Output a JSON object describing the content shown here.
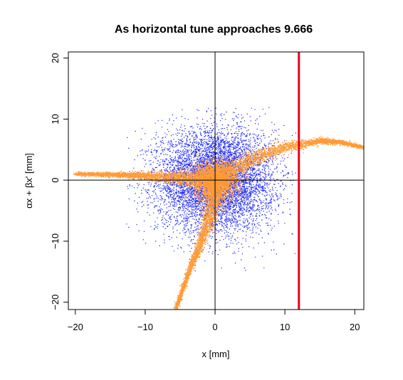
{
  "chart_data": {
    "type": "scatter",
    "title": "As horizontal tune approaches 9.666",
    "xlabel": "x  [mm]",
    "ylabel": "αx + βx'  [mm]",
    "xlim": [
      -21,
      21.3
    ],
    "ylim": [
      -21.2,
      21
    ],
    "x_ticks": [
      -20,
      -10,
      0,
      10,
      20
    ],
    "y_ticks": [
      -20,
      -10,
      0,
      10,
      20
    ],
    "x_tick_labels": [
      "−20",
      "−10",
      "0",
      "10",
      "20"
    ],
    "y_tick_labels": [
      "−20",
      "−10",
      "0",
      "10",
      "20"
    ],
    "reference_lines": [
      {
        "orientation": "vertical",
        "value": 0,
        "color": "#000000"
      },
      {
        "orientation": "horizontal",
        "value": 0,
        "color": "#000000"
      },
      {
        "orientation": "vertical",
        "value": 12,
        "color": "#e8001c"
      }
    ],
    "series": [
      {
        "color": "#1f2bff",
        "distribution": "gaussian cloud",
        "center": [
          0,
          0
        ],
        "sigma": [
          4.2,
          4.2
        ],
        "extent_x": [
          -13,
          11.5
        ],
        "extent_y": [
          -15,
          12
        ]
      },
      {
        "color": "#ff9a35",
        "distribution": "three-armed separatrix",
        "arms": [
          {
            "path": [
              [
                0,
                0
              ],
              [
                -5,
                0.4
              ],
              [
                -10,
                0.7
              ],
              [
                -15,
                0.9
              ],
              [
                -20,
                1.0
              ]
            ]
          },
          {
            "path": [
              [
                0,
                0
              ],
              [
                5,
                3.4
              ],
              [
                10,
                5.4
              ],
              [
                15,
                6.4
              ],
              [
                18,
                6.2
              ],
              [
                21.3,
                5.3
              ]
            ]
          },
          {
            "path": [
              [
                0,
                0
              ],
              [
                -0.5,
                -5
              ],
              [
                -2,
                -10
              ],
              [
                -3.8,
                -15
              ],
              [
                -5.7,
                -21.2
              ]
            ]
          }
        ],
        "core": {
          "center": [
            0,
            0
          ],
          "sigma": [
            1.6,
            1.6
          ]
        }
      }
    ],
    "grid": false,
    "legend": "none"
  }
}
